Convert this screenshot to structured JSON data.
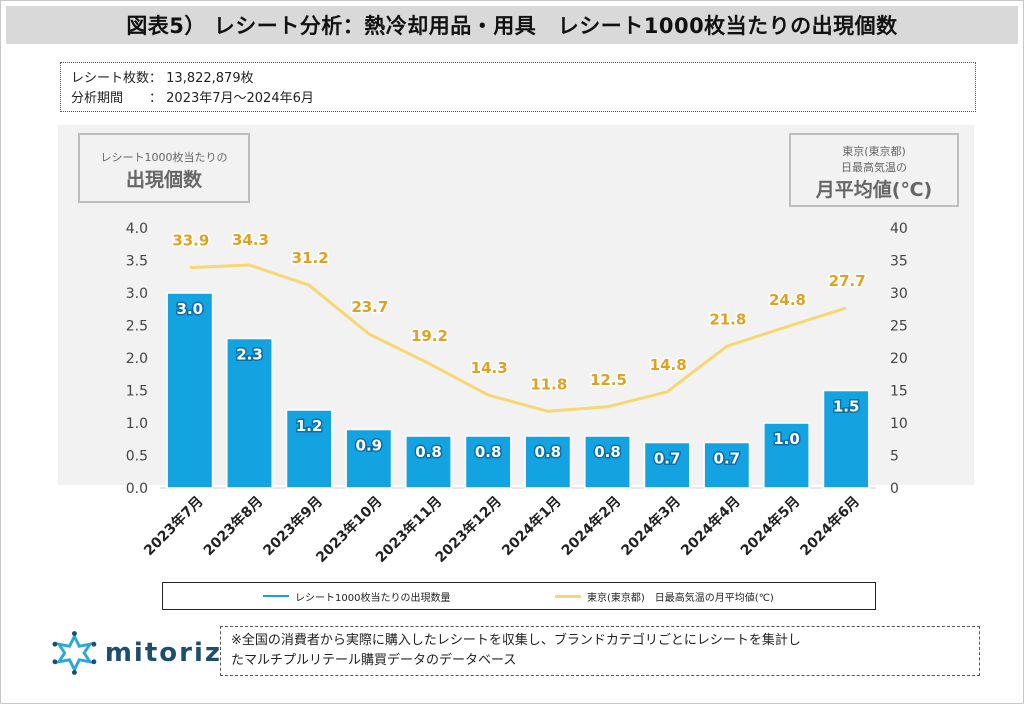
{
  "title": "図表5） レシート分析：熱冷却用品・用具　レシート1000枚当たりの出現個数",
  "info": {
    "receipts_label": "レシート枚数：",
    "receipts_value": "13,822,879枚",
    "period_label": "分析期間　　：",
    "period_value": "2023年7月～2024年6月"
  },
  "left_axis_box": {
    "line1": "レシート1000枚当たりの",
    "line2": "出現個数"
  },
  "right_axis_box": {
    "line1": "東京(東京都)",
    "line2": "日最高気温の",
    "line3": "月平均値(℃)"
  },
  "legend": {
    "bar_label": "レシート1000枚当たりの出現数量",
    "line_label": "東京(東京都)　日最高気温の月平均値(℃)"
  },
  "note": {
    "line1": "※全国の消費者から実際に購入したレシートを収集し、ブランドカテゴリごとにレシートを集計し",
    "line2": "たマルチプルリテール購買データのデータベース"
  },
  "logo": {
    "text": "mitoriz"
  },
  "colors": {
    "bar": "#12a3e0",
    "line": "#f7d774",
    "line_label": "#e0a020",
    "bar_label_outline": "#0a6fa8"
  },
  "chart_data": {
    "type": "bar",
    "categories": [
      "2023年7月",
      "2023年8月",
      "2023年9月",
      "2023年10月",
      "2023年11月",
      "2023年12月",
      "2024年1月",
      "2024年2月",
      "2024年3月",
      "2024年4月",
      "2024年5月",
      "2024年6月"
    ],
    "series": [
      {
        "name": "レシート1000枚当たりの出現数量",
        "type": "bar",
        "axis": "left",
        "values": [
          3.0,
          2.3,
          1.2,
          0.9,
          0.8,
          0.8,
          0.8,
          0.8,
          0.7,
          0.7,
          1.0,
          1.5
        ]
      },
      {
        "name": "東京(東京都)　日最高気温の月平均値(℃)",
        "type": "line",
        "axis": "right",
        "values": [
          33.9,
          34.3,
          31.2,
          23.7,
          19.2,
          14.3,
          11.8,
          12.5,
          14.8,
          21.8,
          24.8,
          27.7
        ]
      }
    ],
    "left_axis": {
      "min": 0,
      "max": 4.0,
      "ticks": [
        "0.0",
        "0.5",
        "1.0",
        "1.5",
        "2.0",
        "2.5",
        "3.0",
        "3.5",
        "4.0"
      ]
    },
    "right_axis": {
      "min": 0,
      "max": 40,
      "ticks": [
        "0",
        "5",
        "10",
        "15",
        "20",
        "25",
        "30",
        "35",
        "40"
      ]
    },
    "grid": false,
    "legend_position": "bottom"
  }
}
